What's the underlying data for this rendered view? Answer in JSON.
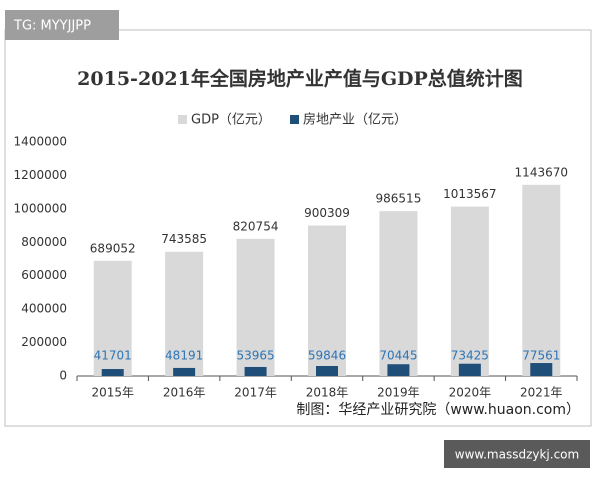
{
  "watermarks": [
    "TG: MYYJJPP",
    "www.massdzykj.com"
  ],
  "chart_data": {
    "type": "bar",
    "title": "2015-2021年全国房地产业产值与GDP总值统计图",
    "source": "制图：华经产业研究院（www.huaon.com）",
    "categories": [
      "2015年",
      "2016年",
      "2017年",
      "2018年",
      "2019年",
      "2020年",
      "2021年"
    ],
    "series": [
      {
        "name": "GDP（亿元）",
        "color": "#d9d9d9",
        "values": [
          689052,
          743585,
          820754,
          900309,
          986515,
          1013567,
          1143670
        ]
      },
      {
        "name": "房地产业（亿元）",
        "color": "#1f4e79",
        "values": [
          41701,
          48191,
          53965,
          59846,
          70445,
          73425,
          77561
        ]
      }
    ],
    "ylim": [
      0,
      1400000
    ],
    "yticks": [
      0,
      200000,
      400000,
      600000,
      800000,
      1000000,
      1200000,
      1400000
    ],
    "grid": false,
    "legend": "top"
  }
}
